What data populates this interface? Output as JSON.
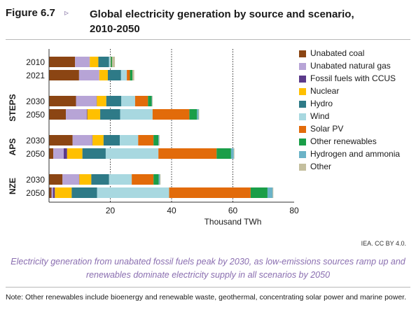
{
  "figure": {
    "label": "Figure 6.7",
    "arrow": "▹",
    "title_line1": "Global electricity generation by source and scenario,",
    "title_line2": "2010-2050"
  },
  "credit": "IEA. CC BY 4.0.",
  "caption": "Electricity generation from unabated fossil fuels peak by 2030, as low-emissions sources ramp up and renewables dominate electricity supply in all scenarios by 2050",
  "note": "Note: Other renewables include bioenergy and renewable waste, geothermal, concentrating solar power and marine power.",
  "chart_data": {
    "type": "bar",
    "orientation": "horizontal",
    "stacked": true,
    "xlabel": "Thousand TWh",
    "xlim": [
      0,
      80
    ],
    "xticks": [
      20,
      40,
      60,
      80
    ],
    "gridlines_at": [
      20,
      40,
      60
    ],
    "legend_position": "right",
    "groups": [
      {
        "name": "",
        "categories": [
          "2010",
          "2021"
        ]
      },
      {
        "name": "STEPS",
        "categories": [
          "2030",
          "2050"
        ]
      },
      {
        "name": "APS",
        "categories": [
          "2030",
          "2050"
        ]
      },
      {
        "name": "NZE",
        "categories": [
          "2030",
          "2050"
        ]
      }
    ],
    "series": [
      {
        "name": "Unabated coal",
        "color": "#8b4513",
        "values": [
          8.5,
          9.8,
          8.8,
          5.5,
          7.7,
          1.4,
          4.4,
          0.8
        ]
      },
      {
        "name": "Unabated natural gas",
        "color": "#b7a4d6",
        "values": [
          4.8,
          6.6,
          6.7,
          6.8,
          6.4,
          3.4,
          5.4,
          0.5
        ]
      },
      {
        "name": "Fossil fuels with CCUS",
        "color": "#5b3a8a",
        "values": [
          0.0,
          0.0,
          0.1,
          0.2,
          0.1,
          1.1,
          0.1,
          0.6
        ]
      },
      {
        "name": "Nuclear",
        "color": "#ffc000",
        "values": [
          2.8,
          2.8,
          3.1,
          4.2,
          3.6,
          5.0,
          3.9,
          5.5
        ]
      },
      {
        "name": "Hydro",
        "color": "#2e7a87",
        "values": [
          3.5,
          4.3,
          4.9,
          6.5,
          5.3,
          7.6,
          5.8,
          8.3
        ]
      },
      {
        "name": "Wind",
        "color": "#a8d8e0",
        "values": [
          0.5,
          1.9,
          4.5,
          10.6,
          6.0,
          17.2,
          7.4,
          23.5
        ]
      },
      {
        "name": "Solar PV",
        "color": "#e26b0a",
        "values": [
          0.1,
          1.0,
          4.2,
          12.0,
          5.0,
          19.0,
          7.1,
          26.6
        ]
      },
      {
        "name": "Other renewables",
        "color": "#1a9e48",
        "values": [
          0.4,
          0.8,
          1.2,
          2.5,
          1.6,
          4.7,
          1.7,
          5.5
        ]
      },
      {
        "name": "Hydrogen and ammonia",
        "color": "#6bb3c7",
        "values": [
          0.0,
          0.0,
          0.1,
          0.5,
          0.2,
          0.9,
          0.4,
          1.7
        ]
      },
      {
        "name": "Other",
        "color": "#c4bf9e",
        "values": [
          0.9,
          0.6,
          0.2,
          0.2,
          0.2,
          0.2,
          0.2,
          0.2
        ]
      }
    ]
  }
}
